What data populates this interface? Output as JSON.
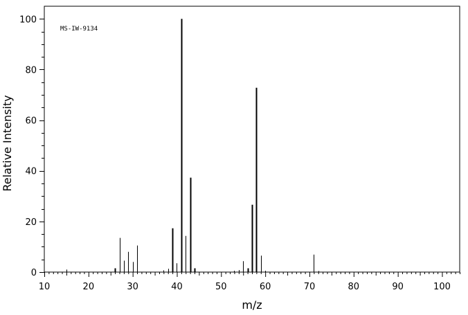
{
  "chart_data": {
    "type": "bar",
    "annotation": "MS-IW-9134",
    "xlabel": "m/z",
    "ylabel": "Relative Intensity",
    "xlim": [
      10,
      104
    ],
    "ylim": [
      0,
      105
    ],
    "x_ticks": [
      10,
      20,
      30,
      40,
      50,
      60,
      70,
      80,
      90,
      100
    ],
    "y_ticks": [
      0,
      20,
      40,
      60,
      80,
      100
    ],
    "grid": false,
    "series": [
      {
        "x": [
          15,
          26,
          27,
          28,
          29,
          30,
          31,
          37,
          38,
          39,
          40,
          41,
          42,
          43,
          44,
          53,
          54,
          55,
          56,
          57,
          58,
          59,
          60,
          71,
          72
        ],
        "values": [
          1.0,
          1.5,
          13.5,
          4.5,
          8.0,
          4.0,
          10.5,
          0.7,
          1.3,
          17.3,
          3.5,
          100.0,
          14.3,
          37.3,
          1.5,
          0.5,
          0.8,
          4.3,
          1.5,
          26.6,
          72.8,
          6.5,
          0.5,
          6.9,
          0.4
        ]
      }
    ]
  }
}
